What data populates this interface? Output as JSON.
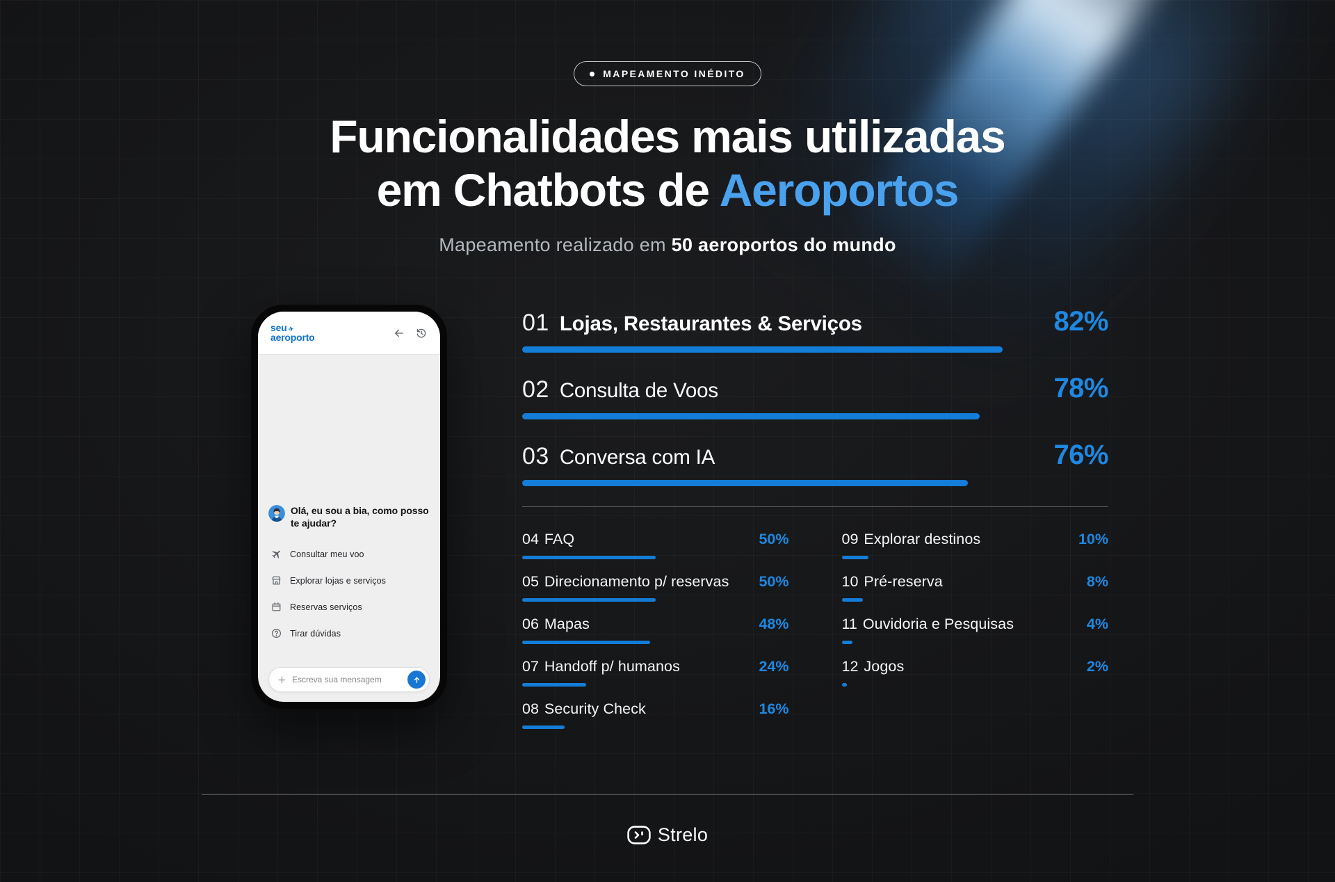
{
  "badge": {
    "label": "MAPEAMENTO INÉDITO"
  },
  "title": {
    "line1": "Funcionalidades mais utilizadas",
    "line2_prefix": "em Chatbots de ",
    "line2_accent": "Aeroportos"
  },
  "subtitle": {
    "regular": "Mapeamento realizado em ",
    "bold": "50 aeroportos do mundo"
  },
  "phone": {
    "logo_line1": "seu",
    "logo_line2": "aeroporto",
    "greeting": "Olá, eu sou a bia, como posso te ajudar?",
    "quick_actions": [
      {
        "icon": "plane-icon",
        "label": "Consultar meu voo"
      },
      {
        "icon": "store-icon",
        "label": "Explorar lojas e serviços"
      },
      {
        "icon": "calendar-icon",
        "label": "Reservas serviços"
      },
      {
        "icon": "question-icon",
        "label": "Tirar dúvidas"
      }
    ],
    "input_placeholder": "Escreva sua mensagem"
  },
  "chart_data": {
    "type": "bar",
    "title": "Funcionalidades mais utilizadas em Chatbots de Aeroportos",
    "subtitle": "Mapeamento realizado em 50 aeroportos do mundo",
    "unit": "%",
    "xlim": [
      0,
      100
    ],
    "hero_count": 3,
    "items": [
      {
        "rank": "01",
        "label": "Lojas, Restaurantes & Serviços",
        "value": 82,
        "emphasis": true
      },
      {
        "rank": "02",
        "label": "Consulta de Voos",
        "value": 78
      },
      {
        "rank": "03",
        "label": "Conversa com IA",
        "value": 76
      },
      {
        "rank": "04",
        "label": "FAQ",
        "value": 50
      },
      {
        "rank": "05",
        "label": "Direcionamento p/ reservas",
        "value": 50
      },
      {
        "rank": "06",
        "label": "Mapas",
        "value": 48
      },
      {
        "rank": "07",
        "label": "Handoff p/ humanos",
        "value": 24
      },
      {
        "rank": "08",
        "label": "Security Check",
        "value": 16
      },
      {
        "rank": "09",
        "label": "Explorar destinos",
        "value": 10
      },
      {
        "rank": "10",
        "label": "Pré-reserva",
        "value": 8
      },
      {
        "rank": "11",
        "label": "Ouvidoria e Pesquisas",
        "value": 4
      },
      {
        "rank": "12",
        "label": "Jogos",
        "value": 2
      }
    ]
  },
  "footer": {
    "brand": "Strelo"
  },
  "colors": {
    "accent_blue": "#1e88e2",
    "bar_blue": "#137dd8",
    "title_accent": "#4aa2ef",
    "background": "#17181a",
    "phone_logo_blue": "#0f72c9"
  }
}
